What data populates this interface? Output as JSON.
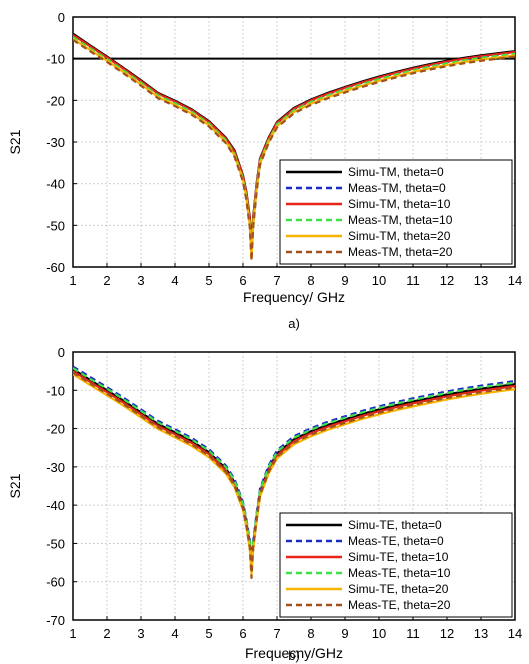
{
  "chart_data": [
    {
      "type": "line",
      "caption": "a)",
      "xlabel": "Frequency/ GHz",
      "ylabel": "S21",
      "xlim": [
        1,
        14
      ],
      "ylim": [
        -60,
        0
      ],
      "xticks": [
        1,
        2,
        3,
        4,
        5,
        6,
        7,
        8,
        9,
        10,
        11,
        12,
        13,
        14
      ],
      "yticks": [
        0,
        -10,
        -20,
        -30,
        -40,
        -50,
        -60
      ],
      "grid": "dotted",
      "legend_position": "bottom-right",
      "reference_line": {
        "y": -10,
        "color": "#000000"
      },
      "x": [
        1,
        1.5,
        2,
        2.5,
        3,
        3.5,
        4,
        4.5,
        5,
        5.5,
        5.75,
        6,
        6.1,
        6.2,
        6.25,
        6.3,
        6.4,
        6.5,
        6.75,
        7,
        7.5,
        8,
        8.5,
        9,
        9.5,
        10,
        10.5,
        11,
        11.5,
        12,
        12.5,
        13,
        13.5,
        14
      ],
      "series": [
        {
          "name": "Simu-TM, theta=0",
          "color": "#000000",
          "dash": "solid",
          "values": [
            -4,
            -6.8,
            -9.5,
            -12.3,
            -15.2,
            -18.2,
            -20.1,
            -22.2,
            -25,
            -29,
            -32,
            -38,
            -42,
            -48,
            -56,
            -48,
            -40,
            -34,
            -29,
            -25.2,
            -21.8,
            -19.8,
            -18.2,
            -16.8,
            -15.5,
            -14.3,
            -13.2,
            -12.2,
            -11.3,
            -10.5,
            -9.8,
            -9.2,
            -8.7,
            -8.2
          ]
        },
        {
          "name": "Meas-TM, theta=0",
          "color": "#1a2cc8",
          "dash": "dashed",
          "values": [
            -4.5,
            -7.2,
            -9.8,
            -12.6,
            -15.5,
            -18.5,
            -20.4,
            -22.5,
            -25.3,
            -29.3,
            -32.5,
            -38.5,
            -42.5,
            -49,
            -57,
            -49,
            -40.5,
            -34.3,
            -29.3,
            -25.5,
            -22.1,
            -20.1,
            -18.5,
            -17.1,
            -15.8,
            -14.6,
            -13.5,
            -12.5,
            -11.6,
            -10.8,
            -10.1,
            -9.5,
            -9,
            -8.5
          ]
        },
        {
          "name": "Simu-TM, theta=10",
          "color": "#e8231a",
          "dash": "solid",
          "values": [
            -4.3,
            -7,
            -9.7,
            -12.5,
            -15.4,
            -18.4,
            -20.3,
            -22.4,
            -25.2,
            -29.2,
            -32.3,
            -38.2,
            -42.3,
            -48.5,
            -56.5,
            -48.5,
            -40.3,
            -34.2,
            -29.2,
            -25.4,
            -22,
            -20,
            -18.4,
            -17,
            -15.7,
            -14.5,
            -13.4,
            -12.4,
            -11.5,
            -10.7,
            -10,
            -9.4,
            -8.9,
            -8.4
          ]
        },
        {
          "name": "Meas-TM, theta=10",
          "color": "#3ee04a",
          "dash": "dashed",
          "values": [
            -4.8,
            -7.5,
            -10.1,
            -12.9,
            -15.8,
            -18.8,
            -20.7,
            -22.8,
            -25.6,
            -29.6,
            -32.8,
            -38.8,
            -43,
            -49.5,
            -57.5,
            -49.5,
            -41,
            -34.7,
            -29.6,
            -25.8,
            -22.4,
            -20.4,
            -18.8,
            -17.4,
            -16.1,
            -14.9,
            -13.8,
            -12.8,
            -11.9,
            -11.1,
            -10.4,
            -9.8,
            -9.3,
            -8.8
          ]
        },
        {
          "name": "Simu-TM, theta=20",
          "color": "#f5b400",
          "dash": "solid",
          "values": [
            -5.2,
            -7.9,
            -10.5,
            -13.3,
            -16.2,
            -19.2,
            -21.1,
            -23.2,
            -26,
            -30,
            -33.2,
            -39.2,
            -43.5,
            -50,
            -58,
            -50,
            -41.5,
            -35.2,
            -30,
            -26.2,
            -22.8,
            -20.8,
            -19.2,
            -17.8,
            -16.5,
            -15.3,
            -14.2,
            -13.2,
            -12.3,
            -11.5,
            -10.8,
            -10.2,
            -9.7,
            -9.2
          ]
        },
        {
          "name": "Meas-TM, theta=20",
          "color": "#a0521a",
          "dash": "dashed",
          "values": [
            -5.5,
            -8.2,
            -10.8,
            -13.6,
            -16.5,
            -19.5,
            -21.4,
            -23.5,
            -26.3,
            -30.3,
            -33.5,
            -39.5,
            -44,
            -50.5,
            -58.5,
            -50.5,
            -42,
            -35.5,
            -30.3,
            -26.5,
            -23.1,
            -21.1,
            -19.5,
            -18.1,
            -16.8,
            -15.6,
            -14.5,
            -13.5,
            -12.6,
            -11.8,
            -11.1,
            -10.5,
            -10,
            -9.5
          ]
        }
      ]
    },
    {
      "type": "line",
      "caption": "b)",
      "xlabel": "Frequecny/GHz",
      "ylabel": "S21",
      "xlim": [
        1,
        14
      ],
      "ylim": [
        -70,
        0
      ],
      "xticks": [
        1,
        2,
        3,
        4,
        5,
        6,
        7,
        8,
        9,
        10,
        11,
        12,
        13,
        14
      ],
      "yticks": [
        0,
        -10,
        -20,
        -30,
        -40,
        -50,
        -60,
        -70
      ],
      "grid": "dotted",
      "legend_position": "bottom-right",
      "x": [
        1,
        1.5,
        2,
        2.5,
        3,
        3.5,
        4,
        4.5,
        5,
        5.5,
        5.75,
        6,
        6.1,
        6.2,
        6.25,
        6.3,
        6.4,
        6.5,
        6.75,
        7,
        7.5,
        8,
        8.5,
        9,
        9.5,
        10,
        10.5,
        11,
        11.5,
        12,
        12.5,
        13,
        13.5,
        14
      ],
      "series": [
        {
          "name": "Simu-TE, theta=0",
          "color": "#000000",
          "dash": "solid",
          "values": [
            -4.5,
            -7.3,
            -10,
            -12.8,
            -15.8,
            -18.8,
            -21,
            -23.3,
            -26.2,
            -30.5,
            -34,
            -40,
            -44.5,
            -50,
            -55,
            -50,
            -43,
            -36.5,
            -30.5,
            -26.5,
            -22.8,
            -20.7,
            -19,
            -17.6,
            -16.2,
            -15,
            -13.9,
            -12.9,
            -12,
            -11.1,
            -10.3,
            -9.6,
            -9,
            -8.4
          ]
        },
        {
          "name": "Meas-TE, theta=0",
          "color": "#1a2cc8",
          "dash": "dashed",
          "values": [
            -3.8,
            -6.5,
            -9.2,
            -12,
            -15,
            -18,
            -20.2,
            -22.5,
            -25.4,
            -29.7,
            -33.2,
            -39.2,
            -43.7,
            -49.2,
            -54.5,
            -49.2,
            -42.2,
            -35.7,
            -29.7,
            -25.7,
            -22,
            -19.9,
            -18.2,
            -16.8,
            -15.4,
            -14.2,
            -13.1,
            -12.1,
            -11.2,
            -10.3,
            -9.5,
            -8.8,
            -8.2,
            -7.6
          ]
        },
        {
          "name": "Simu-TE, theta=10",
          "color": "#e8231a",
          "dash": "solid",
          "values": [
            -5,
            -7.8,
            -10.5,
            -13.3,
            -16.3,
            -19.3,
            -21.5,
            -23.8,
            -26.7,
            -31,
            -34.5,
            -40.5,
            -45,
            -50.5,
            -56,
            -50.5,
            -43.5,
            -37,
            -31,
            -27,
            -23.3,
            -21.2,
            -19.5,
            -18.1,
            -16.7,
            -15.5,
            -14.4,
            -13.4,
            -12.5,
            -11.6,
            -10.8,
            -10.1,
            -9.5,
            -8.9
          ]
        },
        {
          "name": "Meas-TE, theta=10",
          "color": "#3ee04a",
          "dash": "dashed",
          "values": [
            -4.2,
            -7,
            -9.6,
            -12.4,
            -15.4,
            -18.4,
            -20.6,
            -22.9,
            -25.8,
            -30.1,
            -33.6,
            -39.6,
            -44.1,
            -49.6,
            -55,
            -49.6,
            -42.6,
            -36.1,
            -30.1,
            -26.1,
            -22.4,
            -20.3,
            -18.6,
            -17.2,
            -15.8,
            -14.6,
            -13.5,
            -12.5,
            -11.6,
            -10.7,
            -9.9,
            -9.2,
            -8.6,
            -8
          ]
        },
        {
          "name": "Simu-TE, theta=20",
          "color": "#f5b400",
          "dash": "solid",
          "values": [
            -5.8,
            -8.6,
            -11.3,
            -14.1,
            -17.1,
            -20.1,
            -22.3,
            -24.6,
            -27.5,
            -31.8,
            -35.3,
            -41.3,
            -45.8,
            -51.5,
            -58,
            -51.5,
            -44.3,
            -37.8,
            -31.8,
            -27.8,
            -24.1,
            -22,
            -20.3,
            -18.9,
            -17.5,
            -16.3,
            -15.2,
            -14.2,
            -13.3,
            -12.4,
            -11.6,
            -10.9,
            -10.3,
            -9.7
          ]
        },
        {
          "name": "Meas-TE, theta=20",
          "color": "#a0521a",
          "dash": "dashed",
          "values": [
            -5.4,
            -8.2,
            -10.9,
            -13.7,
            -16.7,
            -19.7,
            -21.9,
            -24.2,
            -27.1,
            -31.4,
            -34.9,
            -40.9,
            -45.4,
            -51,
            -59,
            -51,
            -43.9,
            -37.4,
            -31.4,
            -27.4,
            -23.7,
            -21.6,
            -19.9,
            -18.5,
            -17.1,
            -15.9,
            -14.8,
            -13.8,
            -12.9,
            -12,
            -11.2,
            -10.5,
            -9.9,
            -9.3
          ]
        }
      ]
    }
  ]
}
